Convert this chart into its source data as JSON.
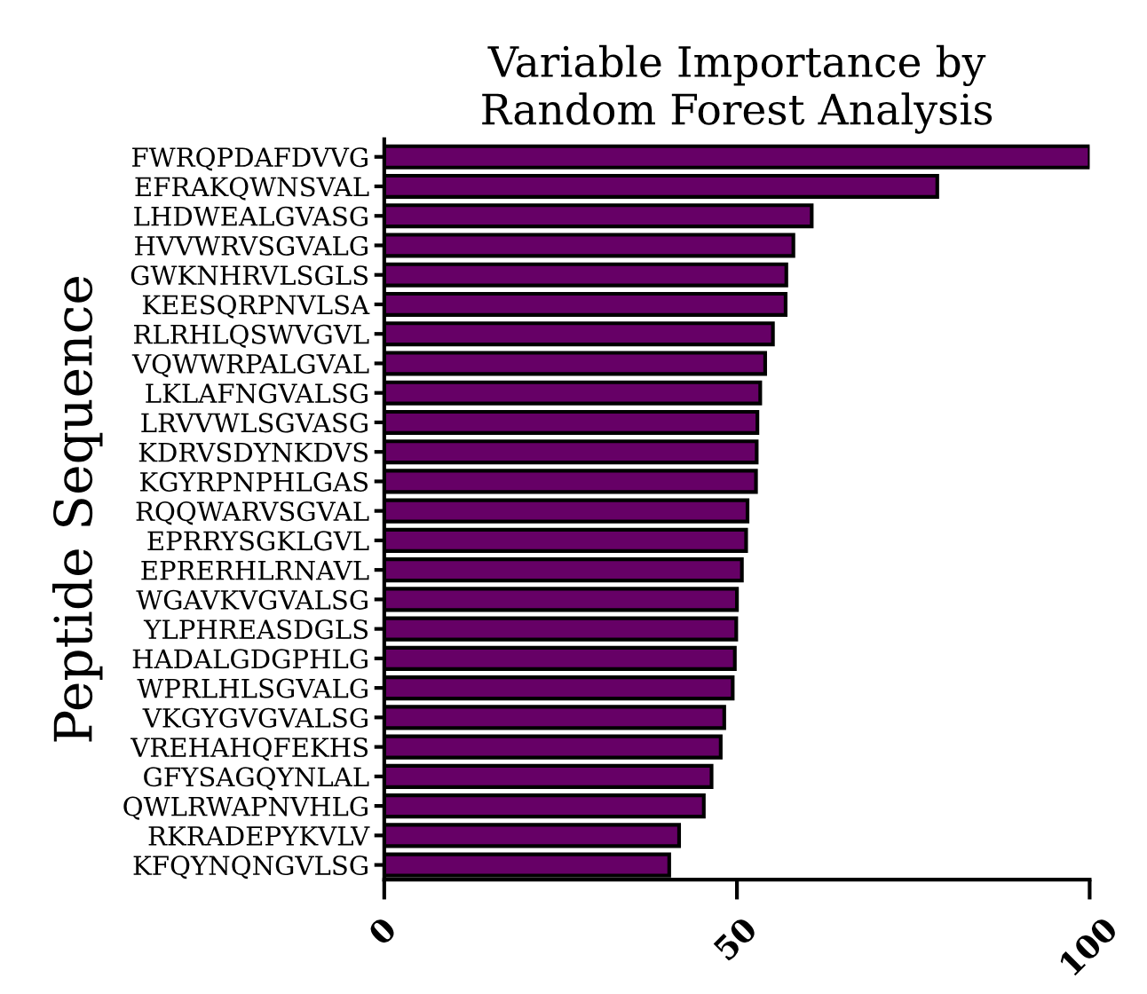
{
  "chart_data": {
    "type": "bar",
    "orientation": "horizontal",
    "title": "Variable Importance by\nRandom Forest Analysis",
    "ylabel": "Peptide Sequence",
    "categories": [
      "FWRQPDAFDVVG",
      "EFRAKQWNSVAL",
      "LHDWEALGVASG",
      "HVVWRVSGVALG",
      "GWKNHRVLSGLS",
      "KEESQRPNVLSA",
      "RLRHLQSWVGVL",
      "VQWWRPALGVAL",
      "LKLAFNGVALSG",
      "LRVVWLSGVASG",
      "KDRVSDYNKDVS",
      "KGYRPNPHLGAS",
      "RQQWARVSGVAL",
      "EPRRYSGKLGVL",
      "EPRERHLRNAVL",
      "WGAVKVGVALSG",
      "YLPHREASDGLS",
      "HADALGDGPHLG",
      "WPRLHLSGVALG",
      "VKGYGVGVALSG",
      "VREHAHQFEKHS",
      "GFYSAGQYNLAL",
      "QWLRWAPNVHLG",
      "RKRADEPYKVLV",
      "KFQYNQNGVLSG"
    ],
    "values": [
      100,
      78.4,
      60.6,
      58.0,
      57.0,
      56.9,
      55.1,
      54.0,
      53.3,
      52.9,
      52.8,
      52.7,
      51.5,
      51.3,
      50.7,
      50.0,
      49.9,
      49.7,
      49.4,
      48.2,
      47.7,
      46.4,
      45.3,
      41.8,
      40.4
    ],
    "color": "#660066",
    "xlim": [
      0,
      100
    ],
    "xticks": [
      0,
      50,
      100
    ],
    "grid": false,
    "legend": false
  }
}
